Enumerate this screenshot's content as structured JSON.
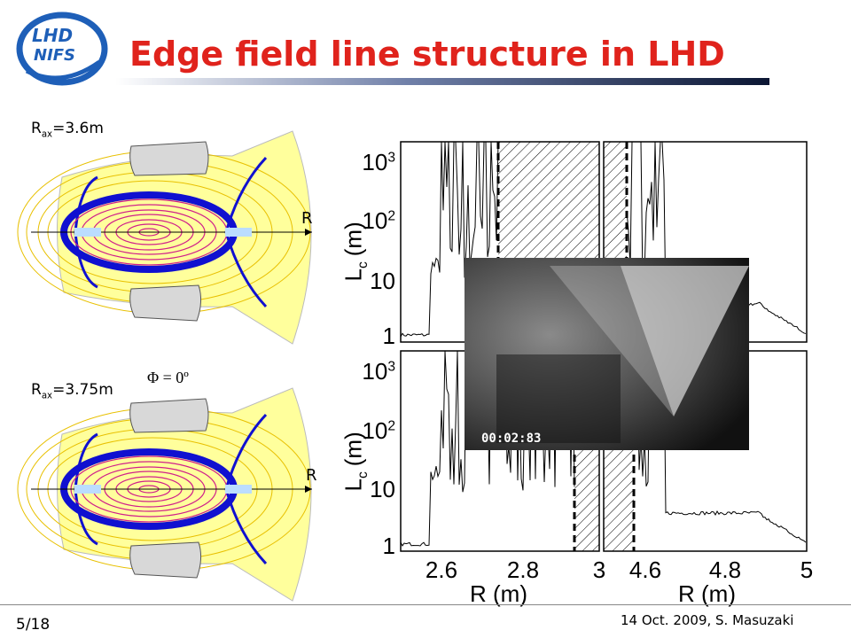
{
  "header": {
    "title": "Edge field line structure in LHD",
    "logo": [
      "LHD",
      "NIFS"
    ]
  },
  "configs": [
    {
      "symbol": "R",
      "subscript": "ax",
      "value": "=3.6m",
      "axis_label": "R"
    },
    {
      "symbol": "R",
      "subscript": "ax",
      "value": "=3.75m",
      "axis_label": "R",
      "angle": "Φ = 0º"
    }
  ],
  "plots": {
    "y_label": {
      "symbol": "L",
      "subscript": "c",
      "unit": "(m)"
    },
    "y_ticks": [
      {
        "base": "1"
      },
      {
        "base": "10"
      },
      {
        "base": "10",
        "exponent": "2"
      },
      {
        "base": "10",
        "exponent": "3"
      }
    ],
    "x_ticks": [
      [
        "2.6",
        "2.8",
        "3"
      ],
      [
        "4.6",
        "4.8",
        "5"
      ]
    ],
    "x_label": "R (m)"
  },
  "photo": {
    "timestamp": "00:02:83"
  },
  "footer": {
    "page": "5/18",
    "credit": "14 Oct. 2009, S. Masuzaki"
  }
}
